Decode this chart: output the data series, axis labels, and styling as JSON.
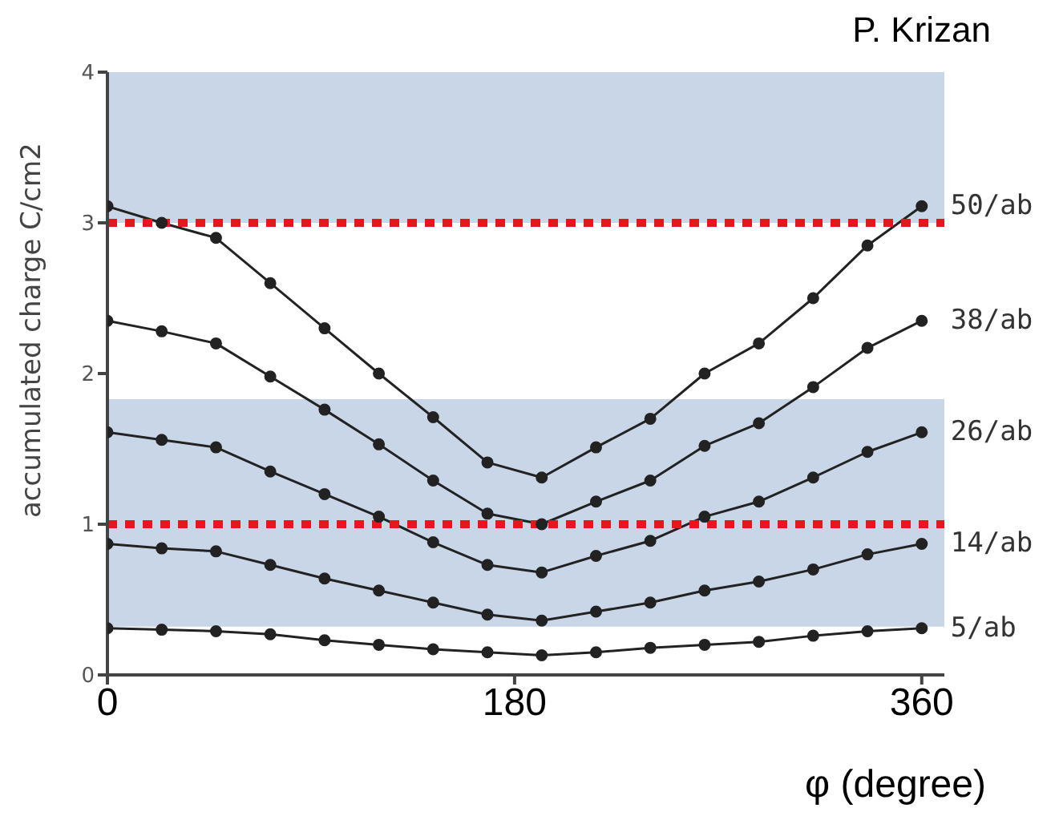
{
  "chart_data": {
    "type": "line",
    "xlabel": "φ (degree)",
    "ylabel": "accumulated charge C/cm2",
    "annotations": [
      "P. Krizan"
    ],
    "x": [
      0,
      24,
      48,
      72,
      96,
      120,
      144,
      168,
      192,
      216,
      240,
      264,
      288,
      312,
      336,
      360
    ],
    "xlim": [
      0,
      370
    ],
    "xticks": [
      0,
      180,
      360
    ],
    "ylim": [
      0,
      4
    ],
    "yticks": [
      0,
      1,
      2,
      3,
      4
    ],
    "grid": false,
    "legend": false,
    "marker": "circle",
    "line_style": "solid",
    "series": [
      {
        "name": "50/ab",
        "color": "#222222",
        "values": [
          3.11,
          3.0,
          2.9,
          2.6,
          2.3,
          2.0,
          1.71,
          1.41,
          1.31,
          1.51,
          1.7,
          2.0,
          2.2,
          2.5,
          2.85,
          3.11
        ]
      },
      {
        "name": "38/ab",
        "color": "#222222",
        "values": [
          2.35,
          2.28,
          2.2,
          1.98,
          1.76,
          1.53,
          1.29,
          1.07,
          1.0,
          1.15,
          1.29,
          1.52,
          1.67,
          1.91,
          2.17,
          2.35
        ]
      },
      {
        "name": "26/ab",
        "color": "#222222",
        "values": [
          1.61,
          1.56,
          1.51,
          1.35,
          1.2,
          1.05,
          0.88,
          0.73,
          0.68,
          0.79,
          0.89,
          1.05,
          1.15,
          1.31,
          1.48,
          1.61
        ]
      },
      {
        "name": "14/ab",
        "color": "#222222",
        "values": [
          0.87,
          0.84,
          0.82,
          0.73,
          0.64,
          0.56,
          0.48,
          0.4,
          0.36,
          0.42,
          0.48,
          0.56,
          0.62,
          0.7,
          0.8,
          0.87
        ]
      },
      {
        "name": "5/ab",
        "color": "#222222",
        "values": [
          0.31,
          0.3,
          0.29,
          0.27,
          0.23,
          0.2,
          0.17,
          0.15,
          0.13,
          0.15,
          0.18,
          0.2,
          0.22,
          0.26,
          0.29,
          0.31
        ]
      }
    ],
    "bands": [
      {
        "axis": "y",
        "from": 3,
        "to": 4,
        "color": "#c9d6e8"
      },
      {
        "axis": "y",
        "from": 0.32,
        "to": 1.83,
        "color": "#c9d6e8"
      }
    ],
    "ref_lines": [
      {
        "axis": "y",
        "value": 3,
        "color": "#e8141e",
        "line_style": "dotted"
      },
      {
        "axis": "y",
        "value": 1,
        "color": "#e8141e",
        "line_style": "dotted"
      }
    ]
  }
}
